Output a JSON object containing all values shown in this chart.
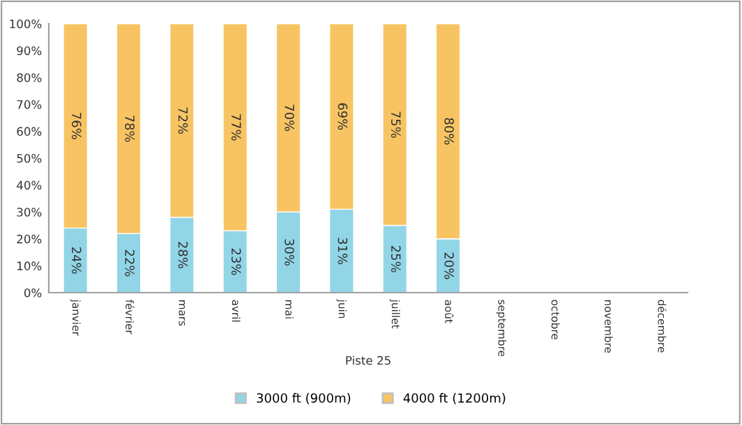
{
  "chart_data": {
    "type": "bar",
    "stacked": true,
    "xlabel": "Piste 25",
    "categories": [
      "janvier",
      "février",
      "mars",
      "avril",
      "mai",
      "juin",
      "juillet",
      "août",
      "septembre",
      "octobre",
      "novembre",
      "décembre"
    ],
    "series": [
      {
        "name": "3000 ft (900m)",
        "color": "#92d5e6",
        "values": [
          24,
          22,
          28,
          23,
          30,
          31,
          25,
          20,
          null,
          null,
          null,
          null
        ],
        "value_labels": [
          "24%",
          "22%",
          "28%",
          "23%",
          "30%",
          "31%",
          "25%",
          "20%",
          null,
          null,
          null,
          null
        ]
      },
      {
        "name": "4000 ft (1200m)",
        "color": "#f8c463",
        "values": [
          76,
          78,
          72,
          77,
          70,
          69,
          75,
          80,
          null,
          null,
          null,
          null
        ],
        "value_labels": [
          "76%",
          "78%",
          "72%",
          "77%",
          "70%",
          "69%",
          "75%",
          "80%",
          null,
          null,
          null,
          null
        ]
      }
    ],
    "ylim": [
      0,
      100
    ],
    "yticks": [
      {
        "value": 0,
        "label": "0%"
      },
      {
        "value": 10,
        "label": "10%"
      },
      {
        "value": 20,
        "label": "20%"
      },
      {
        "value": 30,
        "label": "30%"
      },
      {
        "value": 40,
        "label": "40%"
      },
      {
        "value": 50,
        "label": "50%"
      },
      {
        "value": 60,
        "label": "60%"
      },
      {
        "value": 70,
        "label": "70%"
      },
      {
        "value": 80,
        "label": "80%"
      },
      {
        "value": 90,
        "label": "90%"
      },
      {
        "value": 100,
        "label": "100%"
      }
    ],
    "grid": false,
    "legend": "bottom"
  }
}
